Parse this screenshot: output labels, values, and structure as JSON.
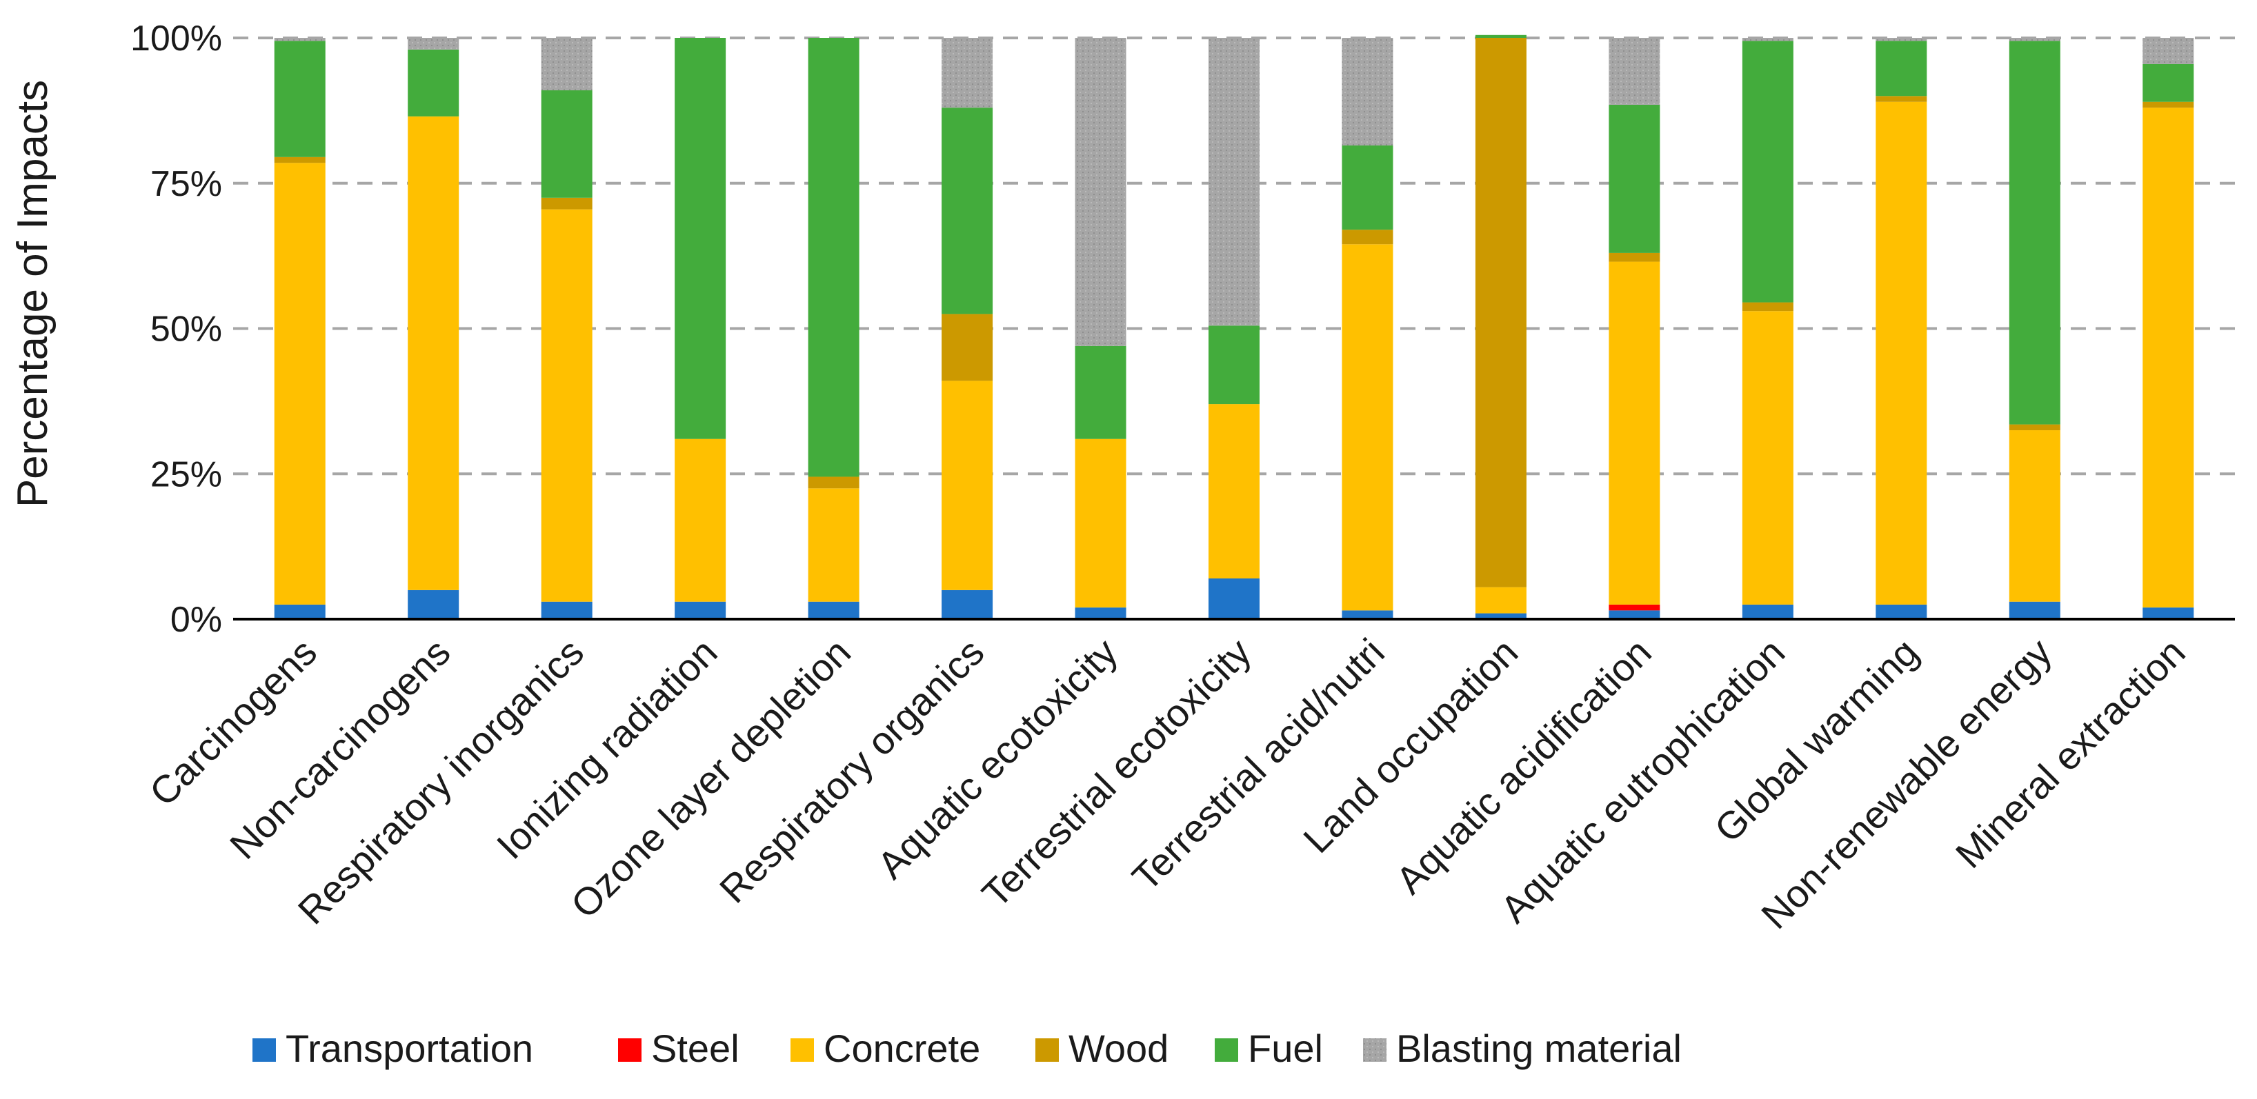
{
  "chart_data": {
    "type": "bar",
    "stacked": true,
    "title": "",
    "xlabel": "",
    "ylabel": "Percentage of Impacts",
    "ylim": [
      0,
      100
    ],
    "yticks": [
      0,
      25,
      50,
      75,
      100
    ],
    "ytick_labels": [
      "0%",
      "25%",
      "50%",
      "75%",
      "100%"
    ],
    "grid": true,
    "legend_position": "bottom",
    "categories": [
      "Carcinogens",
      "Non-carcinogens",
      "Respiratory inorganics",
      "Ionizing radiation",
      "Ozone layer depletion",
      "Respiratory organics",
      "Aquatic ecotoxicity",
      "Terrestrial ecotoxicity",
      "Terrestrial acid/nutri",
      "Land occupation",
      "Aquatic acidification",
      "Aquatic eutrophication",
      "Global warming",
      "Non-renewable energy",
      "Mineral extraction"
    ],
    "series": [
      {
        "name": "Transportation",
        "color": "#1f74c8",
        "values": [
          2.5,
          5,
          3,
          3,
          3,
          5,
          2,
          7,
          1.5,
          1,
          1.5,
          2.5,
          2.5,
          3,
          2
        ]
      },
      {
        "name": "Steel",
        "color": "#ff0000",
        "values": [
          0,
          0,
          0,
          0,
          0,
          0,
          0,
          0,
          0,
          0,
          1,
          0,
          0,
          0,
          0
        ]
      },
      {
        "name": "Concrete",
        "color": "#ffc000",
        "values": [
          76,
          81.5,
          67.5,
          28,
          19.5,
          36,
          29,
          30,
          63,
          4.5,
          59,
          50.5,
          86.5,
          29.5,
          86
        ]
      },
      {
        "name": "Wood",
        "color": "#cc9900",
        "values": [
          1,
          0,
          2,
          0,
          2,
          11.5,
          0,
          0,
          2.5,
          94.5,
          1.5,
          1.5,
          1,
          1,
          1
        ]
      },
      {
        "name": "Fuel",
        "color": "#43ac3c",
        "values": [
          20,
          11.5,
          18.5,
          69,
          75.5,
          35.5,
          16,
          13.5,
          14.5,
          0.5,
          25.5,
          45,
          9.5,
          66,
          6.5
        ]
      },
      {
        "name": "Blasting material",
        "color": "#a6a6a6",
        "values": [
          0.5,
          2,
          9,
          0,
          0,
          12,
          53,
          49.5,
          18.5,
          0,
          11.5,
          0.5,
          0.5,
          0.5,
          4.5
        ]
      }
    ]
  }
}
